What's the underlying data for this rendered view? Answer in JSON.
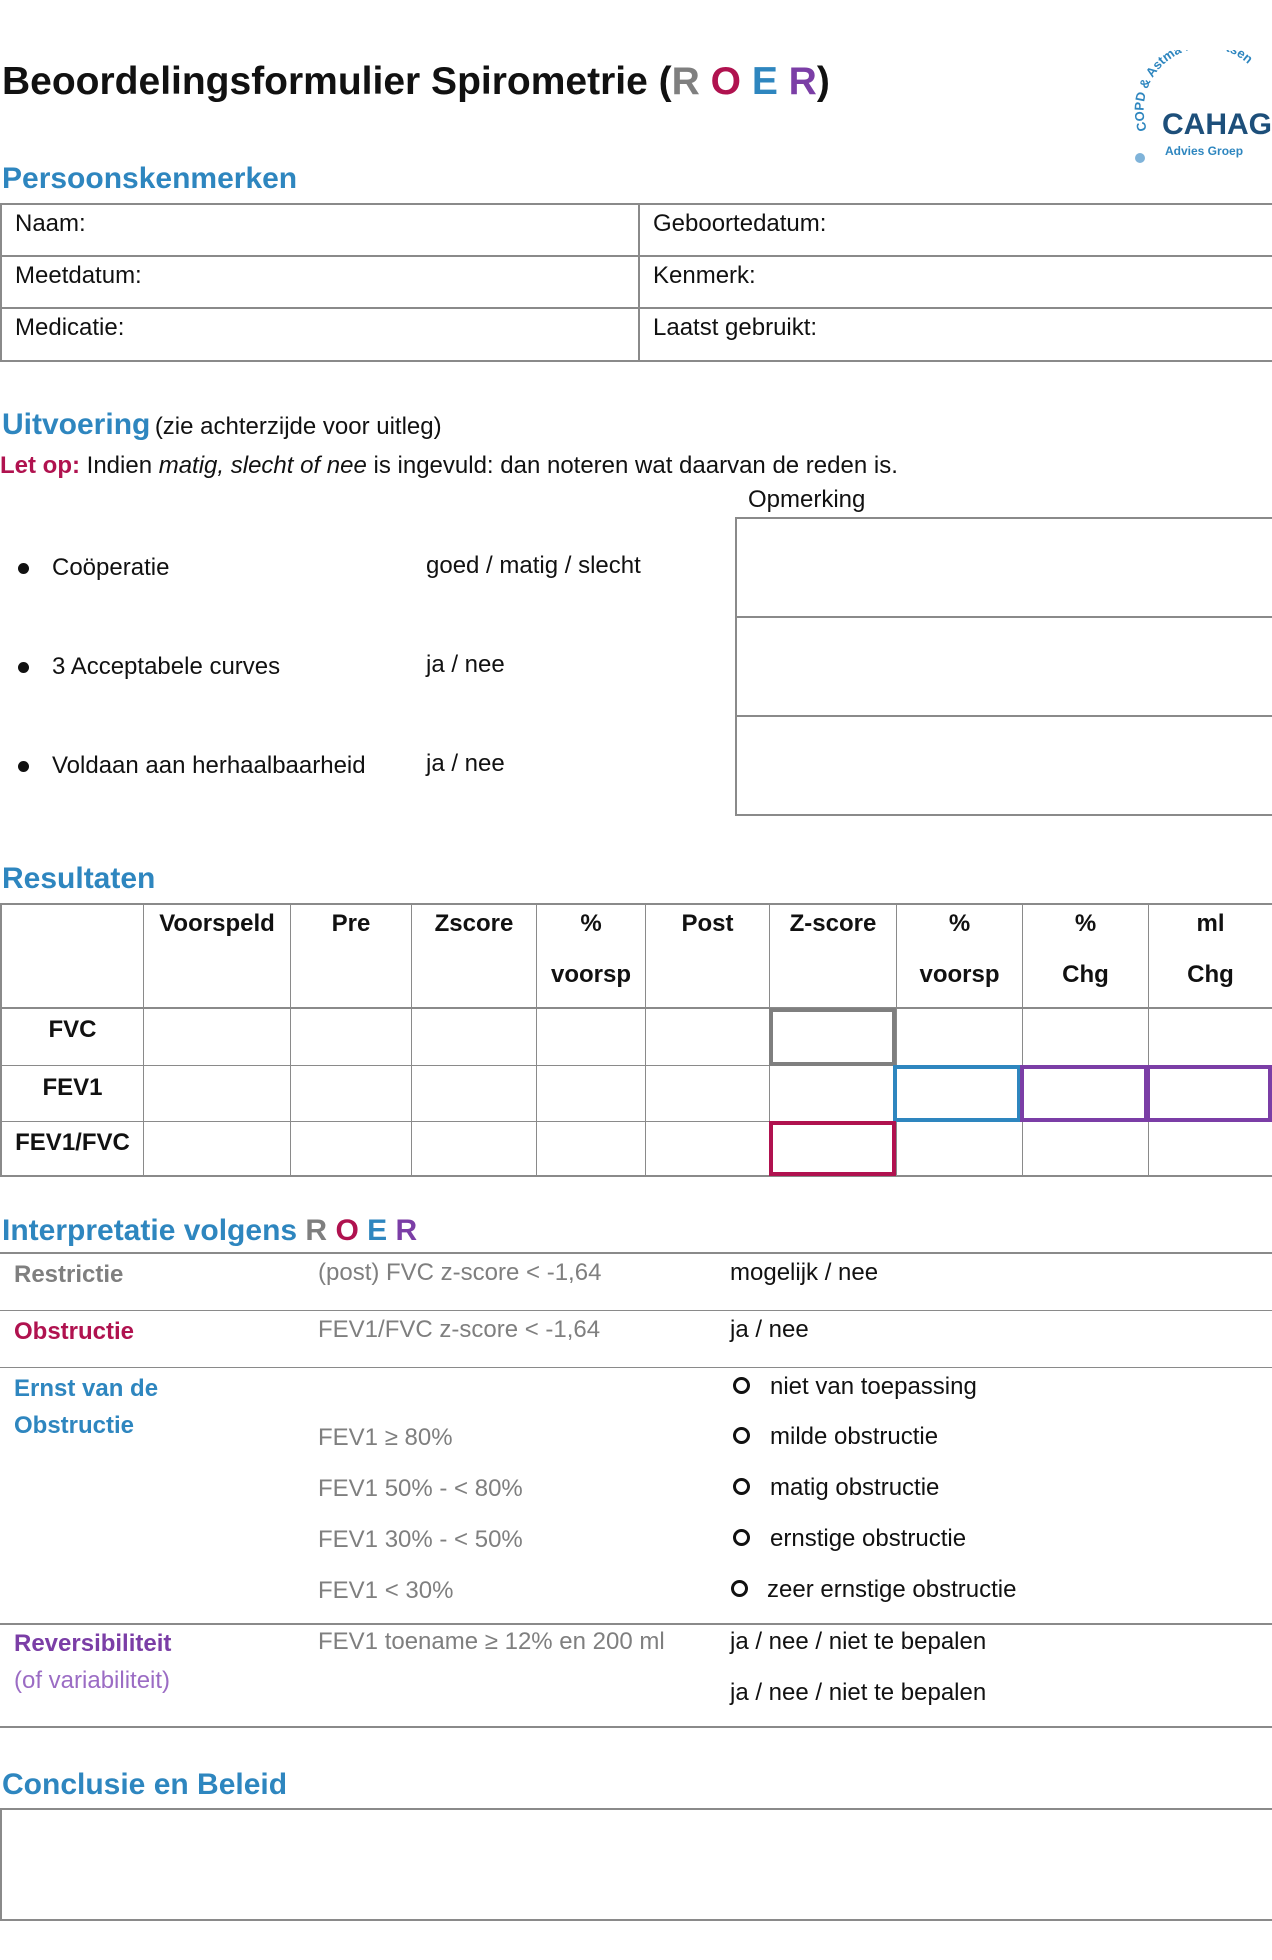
{
  "title": {
    "main": "Beoordelingsformulier Spirometrie (",
    "r": "R",
    "o": "O",
    "e": "E",
    "r2": "R",
    "close": ")"
  },
  "logo": {
    "arc_text": "COPD & Astma Huisartsen",
    "name": "CAHAG",
    "sub": "Advies Groep"
  },
  "persoon": {
    "heading": "Persoonskenmerken",
    "naam": "Naam:",
    "geboortedatum": "Geboortedatum:",
    "meetdatum": "Meetdatum:",
    "kenmerk": "Kenmerk:",
    "medicatie": "Medicatie:",
    "laatst": "Laatst gebruikt:"
  },
  "uitvoering": {
    "heading": "Uitvoering",
    "heading_note": "(zie achterzijde voor uitleg)",
    "letop_label": "Let op:",
    "letop_pre": "Indien",
    "letop_italic": "matig, slecht of nee",
    "letop_post": "is ingevuld: dan noteren wat daarvan de reden is.",
    "opmerking": "Opmerking",
    "items": [
      {
        "label": "Coöperatie",
        "options": "goed / matig / slecht"
      },
      {
        "label": "3 Acceptabele curves",
        "options": "ja / nee"
      },
      {
        "label": "Voldaan aan herhaalbaarheid",
        "options": "ja / nee"
      }
    ]
  },
  "resultaten": {
    "heading": "Resultaten",
    "headers": [
      {
        "l1": "Voorspeld",
        "l2": ""
      },
      {
        "l1": "Pre",
        "l2": ""
      },
      {
        "l1": "Zscore",
        "l2": ""
      },
      {
        "l1": "%",
        "l2": "voorsp"
      },
      {
        "l1": "Post",
        "l2": ""
      },
      {
        "l1": "Z-score",
        "l2": ""
      },
      {
        "l1": "%",
        "l2": "voorsp"
      },
      {
        "l1": "%",
        "l2": "Chg"
      },
      {
        "l1": "ml",
        "l2": "Chg"
      }
    ],
    "rows": [
      "FVC",
      "FEV1",
      "FEV1/FVC"
    ]
  },
  "interpretatie": {
    "heading": "Interpretatie volgens",
    "roer": [
      "R",
      "O",
      "E",
      "R"
    ],
    "restrictie": {
      "label": "Restrictie",
      "criterion": "(post) FVC z-score < -1,64",
      "options": "mogelijk / nee"
    },
    "obstructie": {
      "label": "Obstructie",
      "criterion": "FEV1/FVC z-score < -1,64",
      "options": "ja / nee"
    },
    "ernst": {
      "label1": "Ernst van de",
      "label2": "Obstructie",
      "items": [
        {
          "criterion": "",
          "option": "niet van toepassing"
        },
        {
          "criterion": "FEV1 ≥ 80%",
          "option": "milde obstructie"
        },
        {
          "criterion": "FEV1 50% - < 80%",
          "option": "matig obstructie"
        },
        {
          "criterion": "FEV1 30% - < 50%",
          "option": "ernstige obstructie"
        },
        {
          "criterion": "FEV1 < 30%",
          "option": "zeer ernstige obstructie"
        }
      ]
    },
    "reversibiliteit": {
      "label1": "Reversibiliteit",
      "label2": "(of variabiliteit)",
      "criterion": "FEV1 toename ≥ 12% en 200 ml",
      "options1": "ja / nee / niet te bepalen",
      "options2": "ja / nee / niet te bepalen"
    }
  },
  "conclusie": {
    "heading": "Conclusie en Beleid"
  },
  "colors": {
    "blue": "#2e86bf",
    "crimson": "#b0124f",
    "grey": "#7f7f7f",
    "purple": "#7b3ea6",
    "light_purple": "#9b6cc4"
  }
}
